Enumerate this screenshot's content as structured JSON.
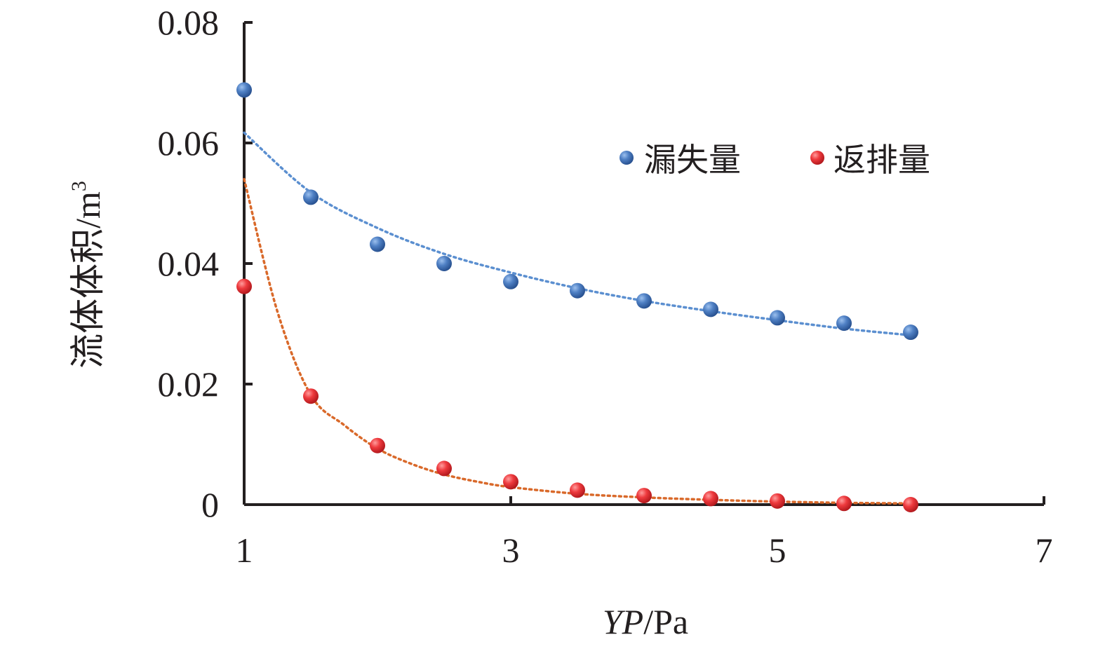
{
  "chart_data": {
    "type": "scatter",
    "xlabel_italic": "YP",
    "xlabel_unit": "/Pa",
    "ylabel": "流体体积/m",
    "ylabel_sup": "3",
    "xlim": [
      1,
      7
    ],
    "ylim": [
      0,
      0.08
    ],
    "xticks": [
      "1",
      "3",
      "5",
      "7"
    ],
    "yticks": [
      "0",
      "0.02",
      "0.04",
      "0.06",
      "0.08"
    ],
    "grid": false,
    "legend_position": "top-right",
    "series": [
      {
        "name": "漏失量",
        "color": "#3f6fb5",
        "trend_color": "#5b8fd0",
        "x": [
          1,
          1.5,
          2,
          2.5,
          3,
          3.5,
          4,
          4.5,
          5,
          5.5,
          6
        ],
        "y": [
          0.0688,
          0.051,
          0.0432,
          0.04,
          0.037,
          0.0355,
          0.0338,
          0.0324,
          0.031,
          0.0301,
          0.0286
        ],
        "trend": {
          "x": [
            1,
            1.5,
            2,
            2.5,
            3,
            3.5,
            4,
            4.5,
            5,
            5.5,
            6
          ],
          "y": [
            0.0617,
            0.0518,
            0.0459,
            0.0416,
            0.0385,
            0.0359,
            0.0338,
            0.0321,
            0.0306,
            0.0292,
            0.0281
          ]
        }
      },
      {
        "name": "返排量",
        "color": "#e0262b",
        "trend_color": "#d9692a",
        "x": [
          1,
          1.5,
          2,
          2.5,
          3,
          3.5,
          4,
          4.5,
          5,
          5.5,
          6
        ],
        "y": [
          0.0362,
          0.018,
          0.0098,
          0.006,
          0.0038,
          0.0024,
          0.0015,
          0.001,
          0.0006,
          0.0002,
          0.0
        ],
        "trend": {
          "x": [
            1,
            1.25,
            1.5,
            1.75,
            2,
            2.25,
            2.5,
            2.75,
            3,
            3.5,
            4,
            4.5,
            5,
            5.5,
            6
          ],
          "y": [
            0.054,
            0.032,
            0.0182,
            0.0132,
            0.0093,
            0.0068,
            0.005,
            0.0038,
            0.0029,
            0.0018,
            0.0012,
            0.0008,
            0.0005,
            0.0003,
            0.0002
          ]
        }
      }
    ]
  }
}
